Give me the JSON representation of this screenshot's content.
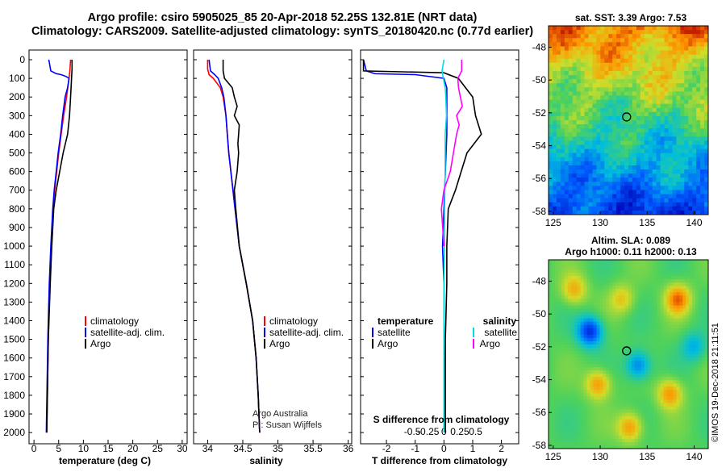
{
  "header": {
    "title_line1": "Argo profile: csiro 5905025_85 20-Apr-2018 52.25S 132.81E (NRT data)",
    "title_line2": "Climatology: CARS2009. Satellite-adjusted climatology: synTS_20180420.nc (0.77d earlier)"
  },
  "chart_data": [
    {
      "type": "line",
      "panel": "temperature",
      "xlabel": "temperature (deg C)",
      "xlim": [
        -1,
        31
      ],
      "xticks": [
        0,
        5,
        10,
        15,
        20,
        25,
        30
      ],
      "ylim": [
        2060,
        0
      ],
      "yticks": [
        0,
        100,
        200,
        300,
        400,
        500,
        600,
        700,
        800,
        900,
        1000,
        1100,
        1200,
        1300,
        1400,
        1500,
        1600,
        1700,
        1800,
        1900,
        2000
      ],
      "legend": [
        "climatology",
        "satellite-adj. clim.",
        "Argo"
      ],
      "series": [
        {
          "name": "climatology",
          "color": "#ff0000",
          "depth": [
            0,
            50,
            100,
            200,
            300,
            400,
            500,
            600,
            700,
            800,
            1000,
            1200,
            1500,
            2000
          ],
          "values": [
            7.4,
            7.3,
            7.1,
            6.6,
            6.0,
            5.5,
            5.0,
            4.6,
            4.2,
            3.9,
            3.5,
            3.2,
            2.9,
            2.6
          ]
        },
        {
          "name": "satellite-adj. clim.",
          "color": "#0000ff",
          "depth": [
            0,
            60,
            75,
            80,
            90,
            100,
            150,
            200,
            300,
            400,
            500,
            600,
            700,
            800,
            1000,
            1200,
            1500,
            2000
          ],
          "values": [
            3.0,
            3.4,
            4.5,
            5.5,
            6.5,
            7.1,
            6.8,
            6.3,
            5.8,
            5.4,
            4.9,
            4.5,
            4.1,
            3.8,
            3.4,
            3.1,
            2.8,
            2.5
          ]
        },
        {
          "name": "Argo",
          "color": "#000000",
          "depth": [
            0,
            50,
            100,
            200,
            300,
            400,
            500,
            600,
            700,
            800,
            1000,
            1200,
            1500,
            2000
          ],
          "values": [
            7.7,
            7.7,
            7.6,
            7.4,
            7.2,
            6.8,
            5.9,
            5.2,
            4.5,
            4.0,
            3.6,
            3.3,
            2.9,
            2.6
          ]
        }
      ]
    },
    {
      "type": "line",
      "panel": "salinity",
      "xlabel": "salinity",
      "xlim": [
        33.8,
        36.05
      ],
      "xticks": [
        34,
        34.5,
        35,
        35.5,
        36
      ],
      "ylim": [
        2060,
        0
      ],
      "legend": [
        "climatology",
        "satellite-adj. clim.",
        "Argo"
      ],
      "annotations": [
        "Argo Australia",
        "PI: Susan Wijffels"
      ],
      "series": [
        {
          "name": "climatology",
          "color": "#ff0000",
          "depth": [
            0,
            50,
            80,
            100,
            150,
            200,
            300,
            400,
            500,
            600,
            700,
            800,
            1000,
            1200,
            1400,
            1600,
            1800,
            2000
          ],
          "values": [
            34.0,
            34.0,
            34.02,
            34.08,
            34.18,
            34.22,
            34.26,
            34.28,
            34.3,
            34.33,
            34.36,
            34.39,
            34.45,
            34.55,
            34.64,
            34.69,
            34.72,
            34.74
          ]
        },
        {
          "name": "satellite-adj. clim.",
          "color": "#0000ff",
          "depth": [
            0,
            60,
            80,
            100,
            150,
            200,
            300,
            400,
            500,
            600,
            700,
            800,
            1000,
            1200,
            1400,
            1600,
            1800,
            2000
          ],
          "values": [
            34.02,
            34.04,
            34.1,
            34.15,
            34.2,
            34.23,
            34.26,
            34.28,
            34.3,
            34.33,
            34.36,
            34.39,
            34.45,
            34.55,
            34.64,
            34.69,
            34.72,
            34.74
          ]
        },
        {
          "name": "Argo",
          "color": "#000000",
          "depth": [
            0,
            60,
            100,
            150,
            200,
            250,
            300,
            350,
            400,
            450,
            500,
            600,
            700,
            800,
            1000,
            1200,
            1400,
            1600,
            1800,
            2000
          ],
          "values": [
            34.22,
            34.22,
            34.24,
            34.35,
            34.38,
            34.42,
            34.38,
            34.45,
            34.44,
            34.43,
            34.44,
            34.42,
            34.38,
            34.4,
            34.45,
            34.55,
            34.64,
            34.69,
            34.72,
            34.74
          ]
        }
      ]
    },
    {
      "type": "line",
      "panel": "difference",
      "xlabel": "T difference from climatology",
      "x2label": "S difference from climatology",
      "xlim": [
        -2.9,
        2.6
      ],
      "xticks": [
        -2,
        -1,
        0,
        1,
        2
      ],
      "x2ticks": [
        -0.5,
        -0.25,
        0,
        0.25,
        0.5
      ],
      "x2ticklabels": [
        "-0.5",
        "-0.25",
        "0",
        "0.25",
        "0.5"
      ],
      "ylim": [
        2060,
        0
      ],
      "legend_temperature": [
        "temperature",
        "satellite",
        "Argo"
      ],
      "legend_salinity": [
        "salinity",
        "satellite",
        "Argo"
      ],
      "series": [
        {
          "name": "satellite",
          "quantity": "temperature",
          "color": "#0000ff",
          "depth": [
            0,
            60,
            75,
            80,
            100,
            150,
            200,
            400,
            600,
            800,
            1000,
            1200,
            1500,
            2000
          ],
          "values": [
            -2.8,
            -2.7,
            -2.4,
            -1.0,
            0.0,
            0.1,
            0.1,
            0.1,
            0.05,
            0.0,
            -0.05,
            0.0,
            0.0,
            0.05
          ]
        },
        {
          "name": "Argo",
          "quantity": "temperature",
          "color": "#000000",
          "depth": [
            0,
            60,
            70,
            100,
            200,
            300,
            400,
            500,
            600,
            700,
            800,
            1000,
            1200,
            1500,
            2000
          ],
          "values": [
            -2.8,
            -2.8,
            0.0,
            0.5,
            1.0,
            1.1,
            1.3,
            0.8,
            0.6,
            0.4,
            0.15,
            0.1,
            0.1,
            0.05,
            0.05
          ]
        },
        {
          "name": "satellite",
          "quantity": "salinity",
          "color": "#00dddd",
          "depth": [
            0,
            60,
            80,
            100,
            150,
            200,
            300,
            400,
            600,
            800,
            1000,
            1200,
            1500,
            2000
          ],
          "values": [
            0.0,
            -0.03,
            -0.02,
            -0.01,
            0.02,
            0.03,
            0.04,
            0.02,
            0.02,
            0.01,
            0.01,
            0.0,
            0.0,
            0.0
          ]
        },
        {
          "name": "Argo",
          "quantity": "salinity",
          "color": "#ff00ff",
          "depth": [
            0,
            60,
            100,
            150,
            200,
            250,
            300,
            350,
            400,
            500,
            600,
            700,
            800,
            900,
            1000
          ],
          "values": [
            0.28,
            0.28,
            0.22,
            0.23,
            0.26,
            0.29,
            0.2,
            0.24,
            0.2,
            0.15,
            0.1,
            0.0,
            -0.04,
            -0.02,
            0.0
          ]
        }
      ]
    },
    {
      "type": "heatmap",
      "panel": "sat. SST",
      "title": "sat. SST: 3.39 Argo: 7.53",
      "xlim": [
        124.5,
        141.5
      ],
      "ylim": [
        -58.2,
        -46.7
      ],
      "xticks": [
        125,
        130,
        135,
        140
      ],
      "yticks": [
        -48,
        -50,
        -52,
        -54,
        -56,
        -58
      ],
      "marker": {
        "lon": 132.81,
        "lat": -52.25
      }
    },
    {
      "type": "heatmap",
      "panel": "altimetry",
      "title_line1": "Altim. SLA: 0.089",
      "title_line2": "Argo h1000: 0.11 h2000: 0.13",
      "xlim": [
        124.5,
        141.5
      ],
      "ylim": [
        -58.2,
        -46.7
      ],
      "xticks": [
        125,
        130,
        135,
        140
      ],
      "yticks": [
        -48,
        -50,
        -52,
        -54,
        -56,
        -58
      ],
      "marker": {
        "lon": 132.81,
        "lat": -52.25
      }
    }
  ],
  "footer": {
    "watermark": "©IMOS 19-Dec-2018 21:11:51"
  },
  "colors": {
    "climatology": "#ff0000",
    "satellite": "#0000ff",
    "argo": "#000000",
    "sal_satellite": "#00dddd",
    "sal_argo": "#ff00ff"
  }
}
